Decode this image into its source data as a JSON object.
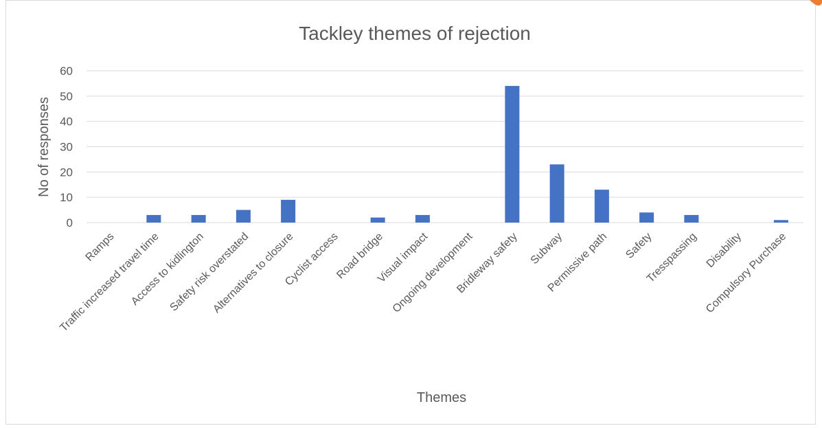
{
  "chart_data": {
    "type": "bar",
    "title": "Tackley themes of rejection",
    "xlabel": "Themes",
    "ylabel": "No of responses",
    "ylim": [
      0,
      60
    ],
    "yticks": [
      0,
      10,
      20,
      30,
      40,
      50,
      60
    ],
    "grid": true,
    "categories": [
      "Ramps",
      "Traffic increased travel time",
      "Access to kidlington",
      "Safety risk overstated",
      "Alternatives to closure",
      "Cyclist access",
      "Road bridge",
      "Visual impact",
      "Ongoing development",
      "Bridleway safety",
      "Subway",
      "Permissive path",
      "Safety",
      "Tresspassing",
      "Disability",
      "Compulsory Purchase"
    ],
    "values": [
      0,
      3,
      3,
      5,
      9,
      0,
      2,
      3,
      0,
      54,
      23,
      13,
      4,
      3,
      0,
      1
    ],
    "colors": {
      "bar": "#4472c4",
      "grid": "#d9d9d9",
      "text": "#595959",
      "accent": "#ed7d31"
    }
  }
}
